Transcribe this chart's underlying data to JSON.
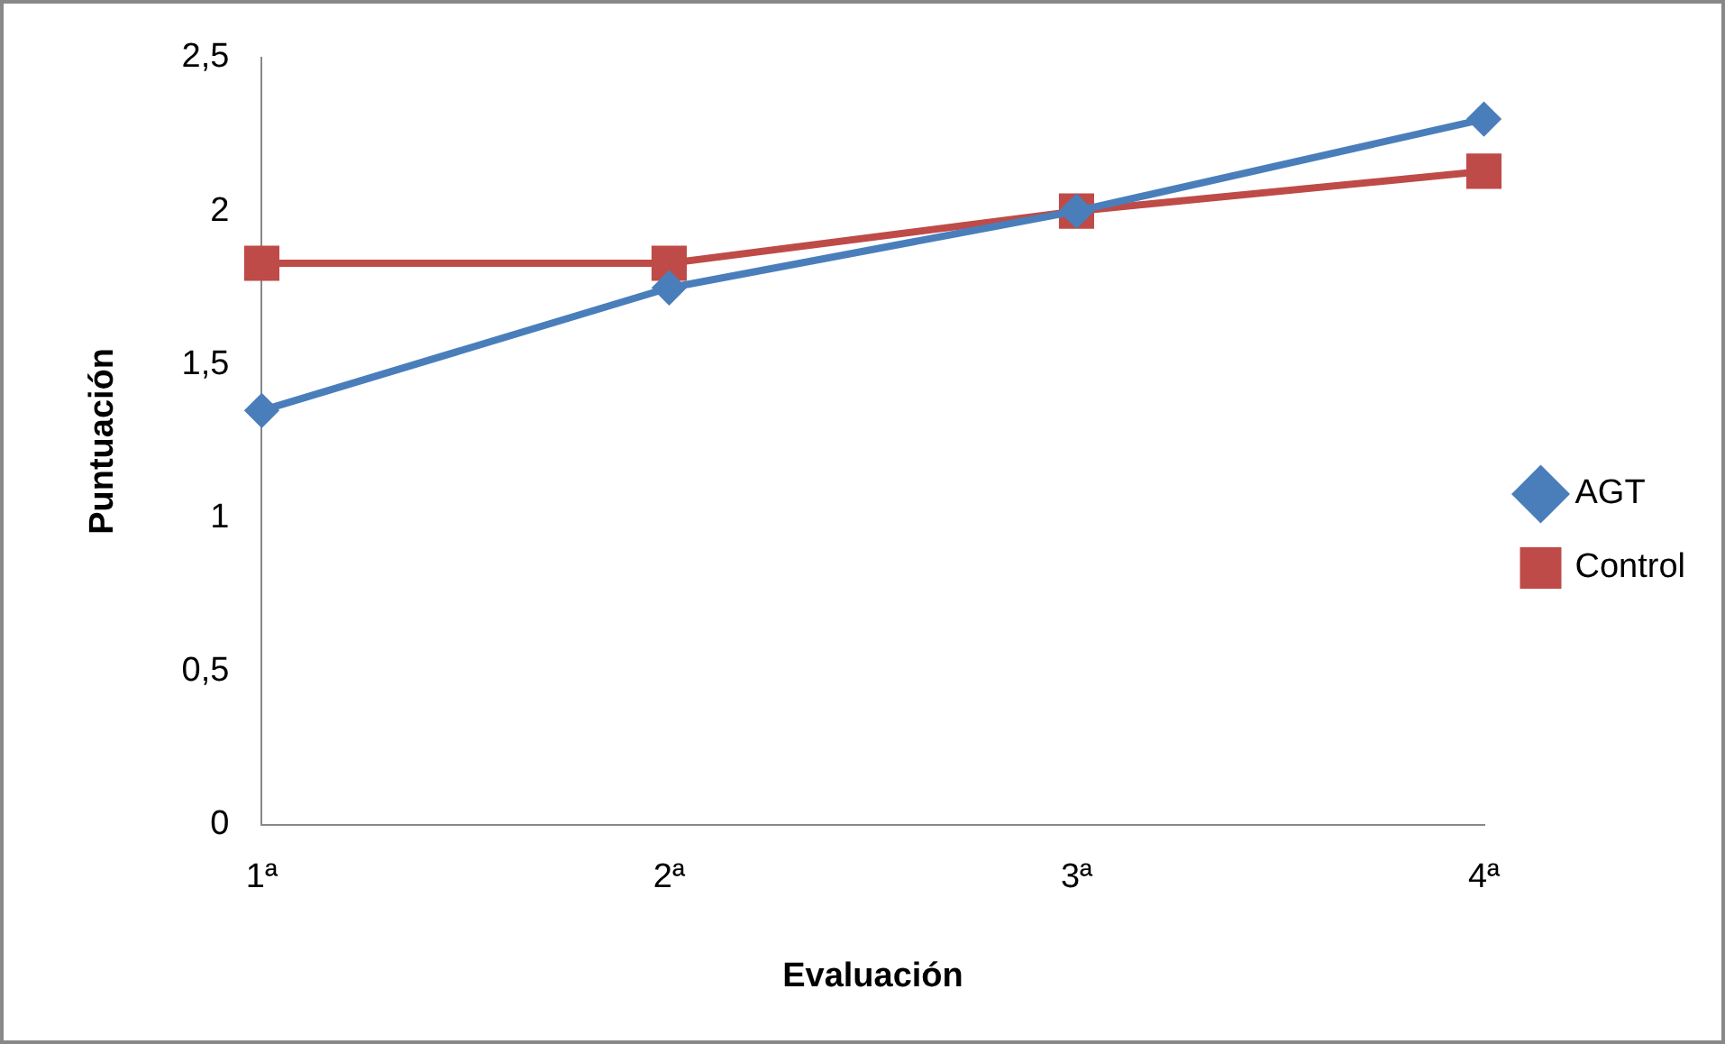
{
  "chart_data": {
    "type": "line",
    "xlabel": "Evaluación",
    "ylabel": "Puntuación",
    "categories": [
      "1ª",
      "2ª",
      "3ª",
      "4ª"
    ],
    "series": [
      {
        "name": "AGT",
        "color": "#4a7ebb",
        "values": [
          1.35,
          1.75,
          2,
          2.3
        ],
        "marker": "diamond"
      },
      {
        "name": "Control",
        "color": "#be4b48",
        "values": [
          1.83,
          1.83,
          2,
          2.13
        ],
        "marker": "square"
      }
    ],
    "ylim": [
      0,
      2.5
    ],
    "yticks": [
      0,
      {
        "value": 0.5,
        "label": "0,5"
      },
      1,
      {
        "value": 1.5,
        "label": "1,5"
      },
      2,
      {
        "value": 2.5,
        "label": "2,5"
      }
    ],
    "legend": "right"
  }
}
